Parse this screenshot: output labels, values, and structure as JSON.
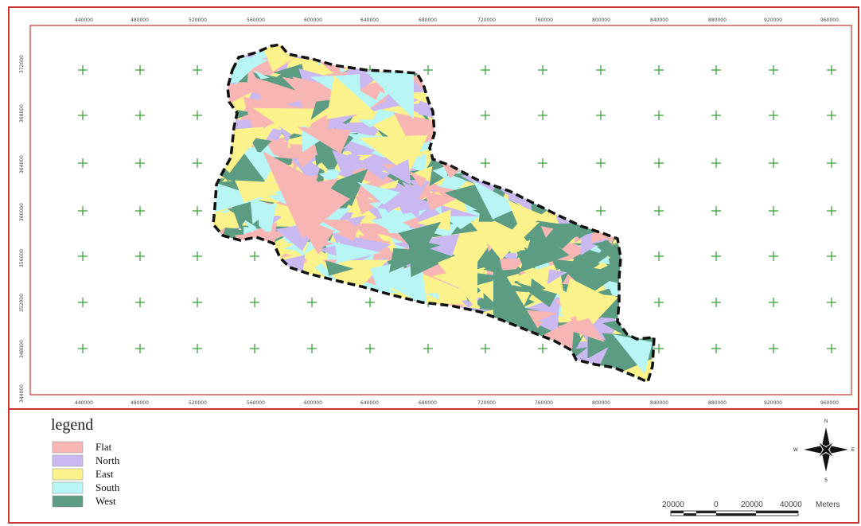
{
  "map": {
    "x_ticks": [
      "440000",
      "480000",
      "520000",
      "560000",
      "600000",
      "640000",
      "680000",
      "720000",
      "760000",
      "800000",
      "840000",
      "880000",
      "920000",
      "960000"
    ],
    "y_ticks": [
      "372000",
      "368000",
      "364000",
      "360000",
      "356000",
      "352000",
      "348000",
      "344000"
    ]
  },
  "legend": {
    "title": "legend",
    "items": [
      {
        "label": "Flat",
        "color": "#f7b6b4"
      },
      {
        "label": "North",
        "color": "#c9b9f0"
      },
      {
        "label": "East",
        "color": "#fbf28c"
      },
      {
        "label": "South",
        "color": "#b8f5f5"
      },
      {
        "label": "West",
        "color": "#5c9c82"
      }
    ]
  },
  "compass": {
    "n": "N",
    "e": "E",
    "s": "S",
    "w": "W"
  },
  "scale_bar": {
    "labels": [
      "20000",
      "0",
      "20000",
      "40000"
    ],
    "unit": "Meters"
  },
  "colors": {
    "frame": "#cc3333",
    "grid_cross": "#2f9e2f",
    "boundary": "#111111"
  }
}
